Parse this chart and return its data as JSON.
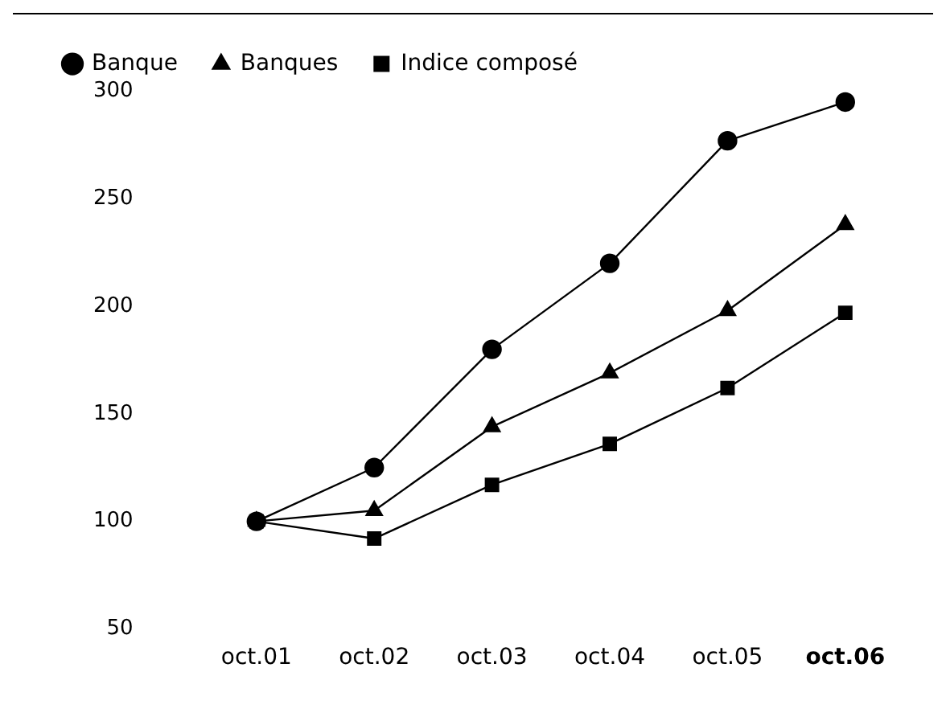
{
  "chart_data": {
    "type": "line",
    "categories": [
      "oct.01",
      "oct.02",
      "oct.03",
      "oct.04",
      "oct.05",
      "oct.06"
    ],
    "series": [
      {
        "name": "Banque",
        "color": "#000000",
        "marker": "circle",
        "values": [
          100,
          125,
          180,
          220,
          277,
          295
        ]
      },
      {
        "name": "Banques",
        "color": "#000000",
        "marker": "triangle",
        "values": [
          100,
          105,
          144,
          169,
          198,
          238
        ]
      },
      {
        "name": "Indice composé",
        "color": "#000000",
        "marker": "square",
        "values": [
          100,
          92,
          117,
          136,
          162,
          197
        ]
      }
    ],
    "ylim": [
      50,
      300
    ],
    "yticks": [
      50,
      100,
      150,
      200,
      250,
      300
    ],
    "grid": false,
    "legend": "top left",
    "line_style": "solid"
  }
}
